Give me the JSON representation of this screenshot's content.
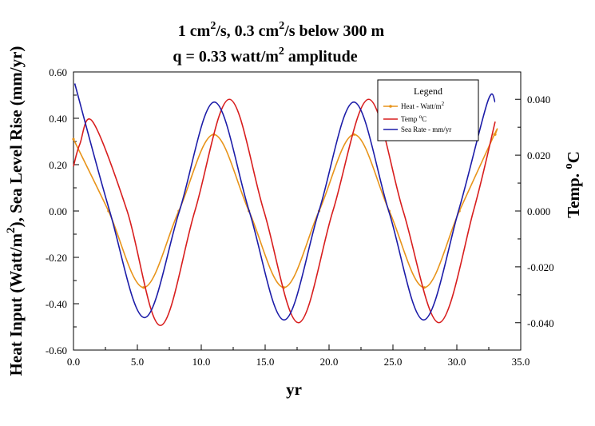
{
  "chart_data": {
    "type": "line",
    "title_line1": {
      "a": "1 cm",
      "a_sup": "2",
      "b": "/s, 0.3 cm",
      "b_sup": "2",
      "c": "/s below 300 m"
    },
    "title_line2": {
      "a": "q = 0.33 watt/m",
      "a_sup": "2",
      "b": " amplitude"
    },
    "xlabel": "yr",
    "ylabel_left": {
      "a": "Heat Input (Watt/m",
      "a_sup": "2",
      "b": "),  Sea Level Rise (mm/yr)"
    },
    "ylabel_right": {
      "a": "Temp. ",
      "a_sup": "o",
      "b": "C"
    },
    "xlim": [
      0,
      35
    ],
    "ylim_left": [
      -0.6,
      0.6
    ],
    "ylim_right": [
      -0.0498,
      0.0498
    ],
    "x_ticks": [
      "0.0",
      "5.0",
      "10.0",
      "15.0",
      "20.0",
      "25.0",
      "30.0",
      "35.0"
    ],
    "y_ticks_left": [
      "0.60",
      "0.40",
      "0.20",
      "0.00",
      "-0.20",
      "-0.40",
      "-0.60"
    ],
    "y_ticks_right": [
      "0.040",
      "0.020",
      "0.000",
      "-0.020",
      "-0.040"
    ],
    "legend": {
      "title": "Legend",
      "position": "top-right",
      "entries": [
        {
          "label": "Heat - Watt/m",
          "sup": "2",
          "color": "#e8941a"
        },
        {
          "label": "Temp ",
          "sup": "o",
          "tail": "C",
          "color": "#d81e1e"
        },
        {
          "label": "Sea Rate - mm/yr",
          "sup": "",
          "color": "#1c1ca8"
        }
      ]
    },
    "grid": false,
    "series": [
      {
        "name": "Heat - Watt/m2",
        "axis": "left",
        "color": "#e8941a",
        "x": [
          0,
          2.74,
          5.49,
          8.24,
          10.98,
          13.73,
          16.47,
          19.22,
          21.96,
          24.71,
          27.45,
          30.2,
          32.94,
          33.0
        ],
        "y": [
          0.31,
          0.0,
          -0.33,
          0.0,
          0.33,
          0.0,
          -0.33,
          0.0,
          0.33,
          0.0,
          -0.33,
          0.0,
          0.33,
          0.33
        ]
      },
      {
        "name": "Temp oC",
        "axis": "right",
        "color": "#d81e1e",
        "x": [
          0.0,
          0.5,
          1.5,
          4.2,
          6.8,
          9.5,
          12.2,
          14.9,
          17.6,
          20.3,
          23.1,
          25.8,
          28.6,
          31.3,
          33.0
        ],
        "y": [
          0.016,
          0.024,
          0.032,
          0.0,
          -0.041,
          0.0,
          0.04,
          0.0,
          -0.04,
          0.0,
          0.04,
          0.0,
          -0.04,
          0.0,
          0.032
        ]
      },
      {
        "name": "Sea Rate - mm/yr",
        "axis": "left",
        "color": "#1c1ca8",
        "x": [
          0.1,
          2.83,
          5.56,
          8.29,
          11.02,
          13.75,
          16.48,
          19.21,
          21.94,
          24.67,
          27.4,
          30.13,
          32.4,
          33.0
        ],
        "y": [
          0.55,
          0.0,
          -0.46,
          0.0,
          0.47,
          0.0,
          -0.47,
          0.0,
          0.47,
          0.0,
          -0.47,
          0.0,
          0.47,
          0.47
        ]
      }
    ]
  }
}
